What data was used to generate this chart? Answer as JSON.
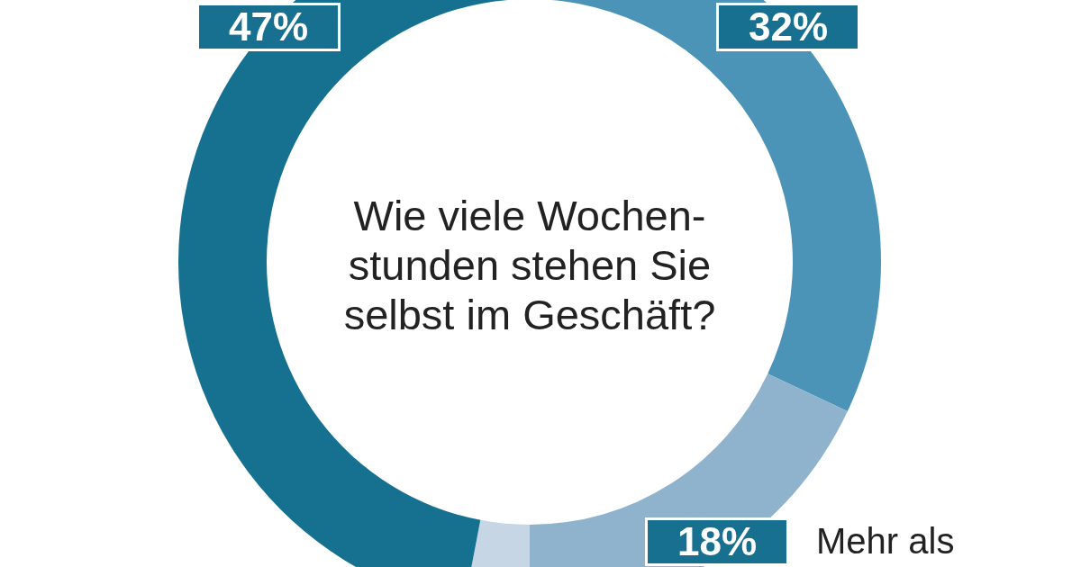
{
  "chart_data": {
    "type": "donut",
    "title": "Wie viele Wochen-\nstunden stehen Sie\nselbst im Geschäft?",
    "categories": [
      null,
      "Mehr als",
      null,
      null
    ],
    "values": [
      32,
      18,
      3,
      47
    ],
    "colors": [
      "#4b93b7",
      "#8fb3cd",
      "#c6d6e4",
      "#16708f"
    ],
    "value_labels": [
      "32%",
      "18%",
      null,
      "47%"
    ]
  }
}
